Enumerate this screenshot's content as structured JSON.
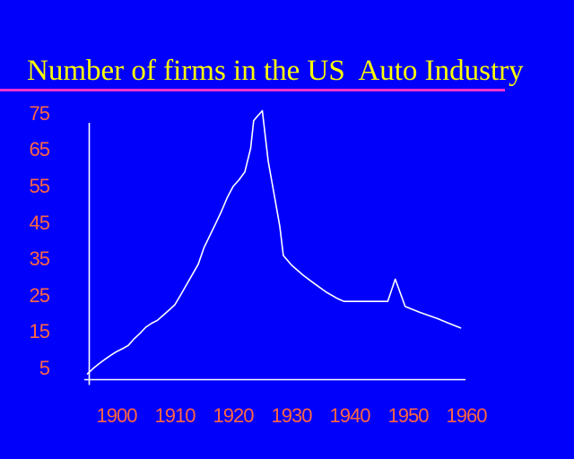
{
  "slide": {
    "title": "Number of firms in the US  Auto Industry",
    "colors": {
      "background": "#0000FB",
      "title_text": "#FFFF00",
      "title_underline": "#FF33CC",
      "tick_labels": "#FF6640",
      "axis": "#FFFFFF",
      "series_line": "#FFFFFF"
    }
  },
  "chart_data": {
    "type": "line",
    "title": "Number of firms in the US  Auto Industry",
    "xlabel": "",
    "ylabel": "",
    "xlim": [
      1893,
      1962
    ],
    "ylim": [
      0,
      80
    ],
    "grid": false,
    "legend": false,
    "x_ticks": [
      1900,
      1910,
      1920,
      1930,
      1940,
      1950,
      1960
    ],
    "x_tick_labels": [
      "1900",
      "1910",
      "1920",
      "1930",
      "1940",
      "1950",
      "1960"
    ],
    "y_ticks": [
      75,
      65,
      55,
      45,
      35,
      25,
      15,
      5
    ],
    "y_tick_labels": [
      "75",
      "65",
      "55",
      "45",
      "35",
      "25",
      "15",
      "5"
    ],
    "series": [
      {
        "name": "Number of firms",
        "points": [
          [
            1895,
            3.5
          ],
          [
            1896,
            5
          ],
          [
            1897,
            6.3
          ],
          [
            1898,
            7.5
          ],
          [
            1899,
            8.6
          ],
          [
            1900,
            9.6
          ],
          [
            1901,
            10.4
          ],
          [
            1902,
            11.3
          ],
          [
            1903,
            13.1
          ],
          [
            1904,
            14.6
          ],
          [
            1905,
            16.3
          ],
          [
            1906,
            17.4
          ],
          [
            1907,
            18.2
          ],
          [
            1908,
            19.6
          ],
          [
            1909,
            21
          ],
          [
            1910,
            22.5
          ],
          [
            1911,
            25.2
          ],
          [
            1912,
            28
          ],
          [
            1913,
            30.8
          ],
          [
            1914,
            33.6
          ],
          [
            1915,
            38.2
          ],
          [
            1916,
            41.5
          ],
          [
            1917,
            44.8
          ],
          [
            1918,
            48.2
          ],
          [
            1919,
            52
          ],
          [
            1920,
            55
          ],
          [
            1921,
            56.8
          ],
          [
            1922,
            59
          ],
          [
            1923,
            65.5
          ],
          [
            1923.5,
            73
          ],
          [
            1924,
            74
          ],
          [
            1925,
            75.8
          ],
          [
            1926,
            62
          ],
          [
            1927,
            53
          ],
          [
            1928,
            44
          ],
          [
            1928.6,
            36
          ],
          [
            1930,
            33.4
          ],
          [
            1932,
            30.6
          ],
          [
            1934,
            28.2
          ],
          [
            1936,
            25.9
          ],
          [
            1938,
            24.1
          ],
          [
            1939,
            23.4
          ],
          [
            1946.5,
            23.4
          ],
          [
            1947.8,
            29.5
          ],
          [
            1949.5,
            22
          ],
          [
            1952,
            20.4
          ],
          [
            1955,
            18.7
          ],
          [
            1957,
            17.4
          ],
          [
            1959,
            16.1
          ]
        ]
      }
    ]
  }
}
